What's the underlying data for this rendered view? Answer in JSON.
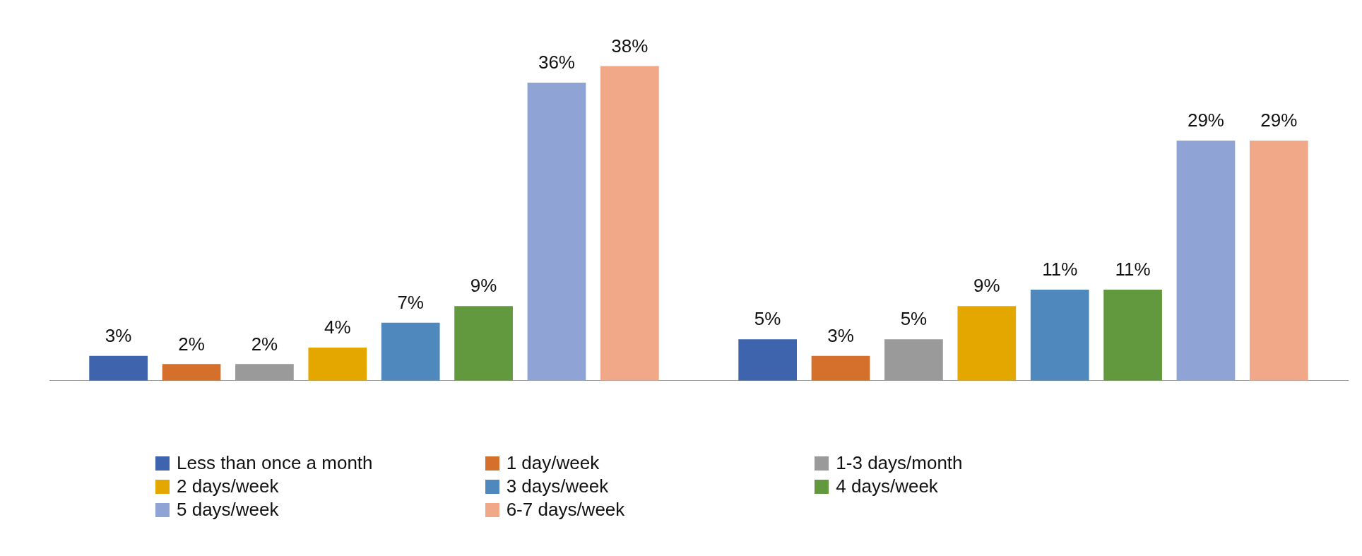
{
  "chart_data": {
    "type": "bar",
    "categories": [
      null,
      null
    ],
    "legend": "bottom",
    "grid": false,
    "series": [
      {
        "name": "Less than once a month",
        "color": "#3d64ad",
        "values": [
          3,
          5
        ],
        "value_labels": [
          "3%",
          "5%"
        ]
      },
      {
        "name": "1 day/week",
        "color": "#d4702b",
        "values": [
          2,
          3
        ],
        "value_labels": [
          "2%",
          "3%"
        ]
      },
      {
        "name": "1-3 days/month",
        "color": "#9a9a9a",
        "values": [
          2,
          5
        ],
        "value_labels": [
          "2%",
          "5%"
        ]
      },
      {
        "name": "2 days/week",
        "color": "#e3a700",
        "values": [
          4,
          9
        ],
        "value_labels": [
          "4%",
          "9%"
        ]
      },
      {
        "name": "3 days/week",
        "color": "#4e88bc",
        "values": [
          7,
          11
        ],
        "value_labels": [
          "7%",
          "11%"
        ]
      },
      {
        "name": "4 days/week",
        "color": "#62993e",
        "values": [
          9,
          11
        ],
        "value_labels": [
          "9%",
          "11%"
        ]
      },
      {
        "name": "5 days/week",
        "color": "#8fa3d4",
        "values": [
          36,
          29
        ],
        "value_labels": [
          "36%",
          "29%"
        ]
      },
      {
        "name": "6-7 days/week",
        "color": "#f0a889",
        "values": [
          38,
          29
        ],
        "value_labels": [
          "38%",
          "29%"
        ]
      }
    ]
  }
}
